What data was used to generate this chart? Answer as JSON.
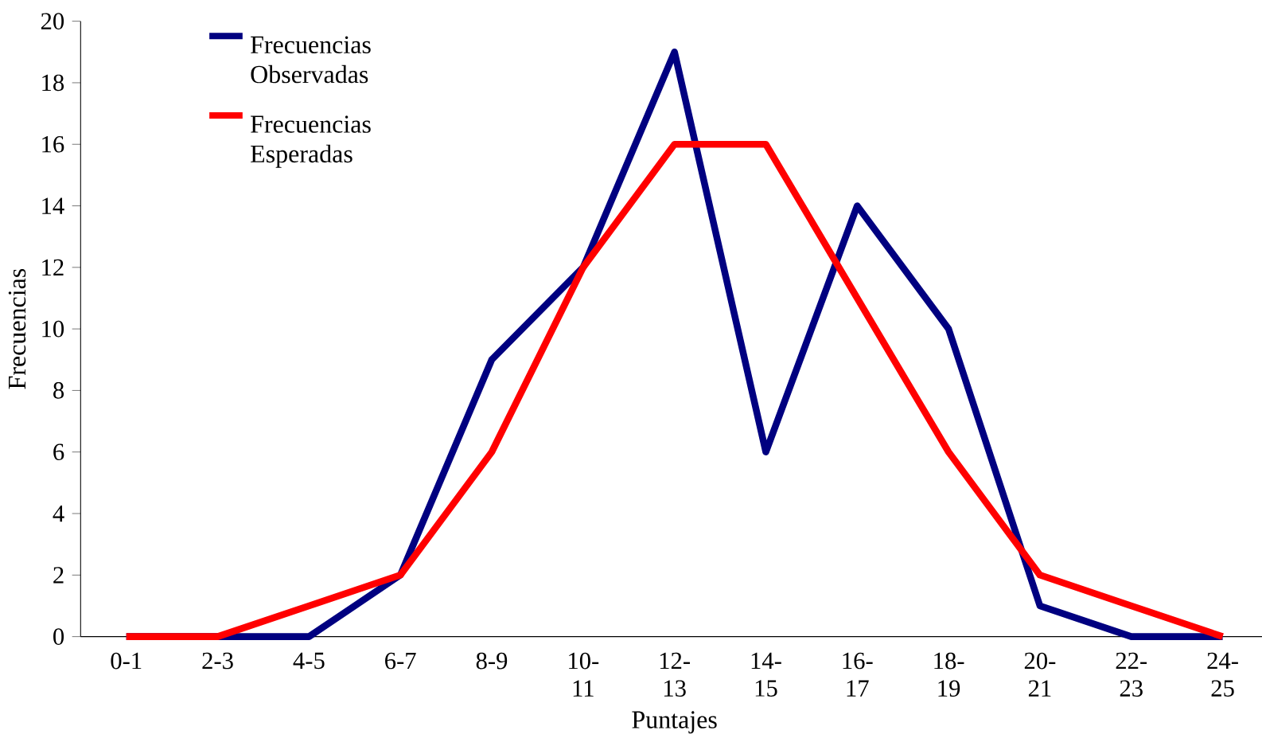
{
  "chart_data": {
    "type": "line",
    "xlabel": "Puntajes",
    "ylabel": "Frecuencias",
    "categories": [
      "0-1",
      "2-3",
      "4-5",
      "6-7",
      "8-9",
      "10-11",
      "12-13",
      "14-15",
      "16-17",
      "18-19",
      "20-21",
      "22-23",
      "24-25"
    ],
    "series": [
      {
        "name": "Frecuencias Observadas",
        "color": "#000080",
        "values": [
          0,
          0,
          0,
          2,
          9,
          12,
          19,
          6,
          14,
          10,
          1,
          0,
          0
        ]
      },
      {
        "name": "Frecuencias Esperadas",
        "color": "#ff0000",
        "values": [
          0,
          0,
          1,
          2,
          6,
          12,
          16,
          16,
          11,
          6,
          2,
          1,
          0
        ]
      }
    ],
    "ylim": [
      0,
      20
    ],
    "yticks": [
      0,
      2,
      4,
      6,
      8,
      10,
      12,
      14,
      16,
      18,
      20
    ],
    "grid": false,
    "legend": "top left",
    "marker": "none",
    "line_style": "solid"
  }
}
